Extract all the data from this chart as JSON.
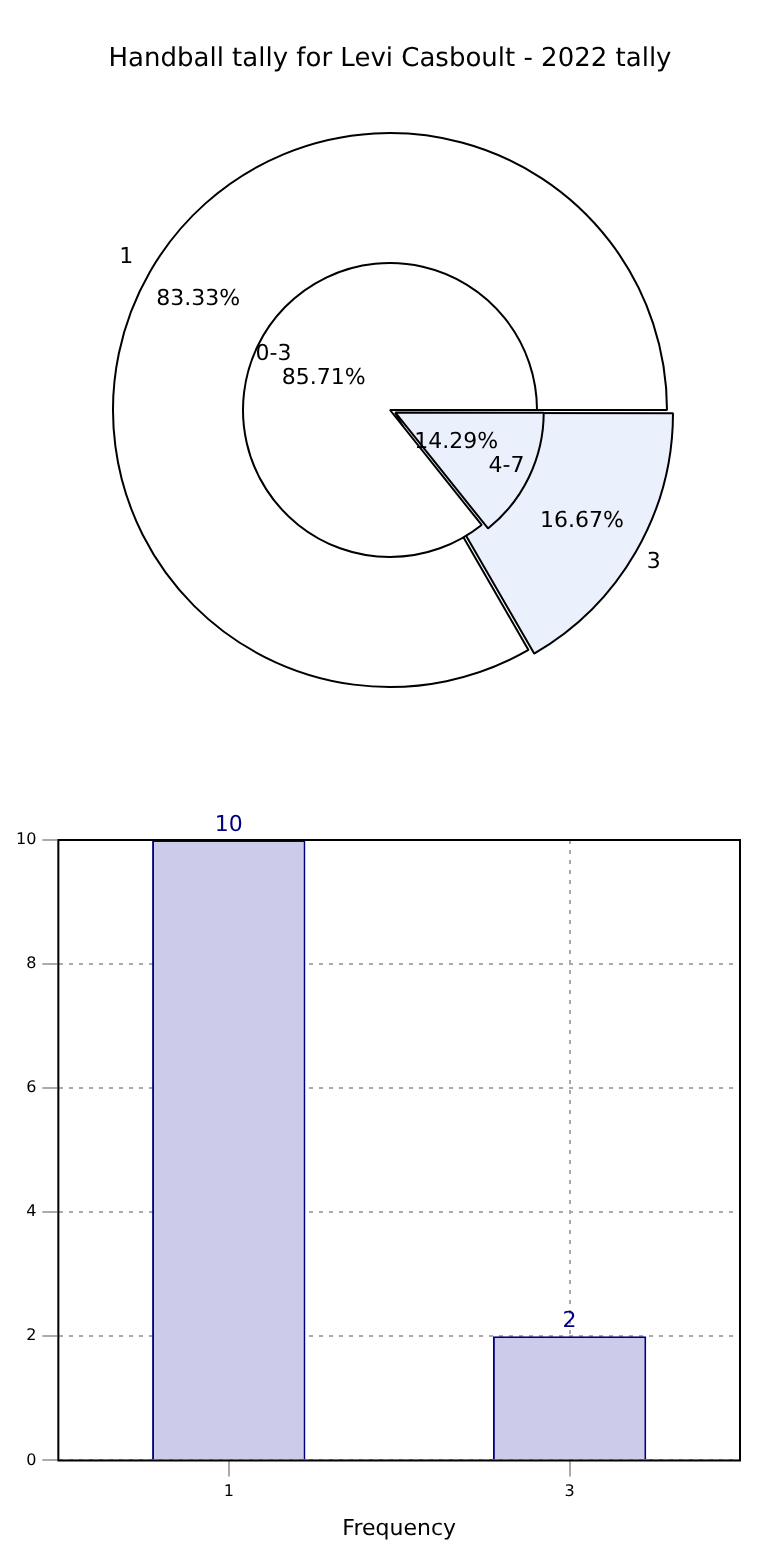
{
  "chart_data": [
    {
      "type": "pie",
      "title": "Handball tally for Levi Casboult - 2022 tally",
      "categories": [
        "1",
        "3"
      ],
      "values": [
        83.33,
        16.67
      ],
      "colors": [
        "#ffffff",
        "#eaf0fc"
      ],
      "value_labels": [
        "83.33%",
        "16.67%"
      ]
    },
    {
      "type": "pie",
      "categories": [
        "0-3",
        "4-7"
      ],
      "values": [
        85.71,
        14.29
      ],
      "colors": [
        "#ffffff",
        "#eaf0fc"
      ],
      "value_labels": [
        "85.71%",
        "14.29%"
      ]
    },
    {
      "type": "bar",
      "xlabel": "Frequency",
      "categories": [
        "1",
        "3"
      ],
      "values": [
        10,
        2
      ],
      "color": "#ccccea",
      "ylim": [
        0,
        10
      ],
      "yticks": [
        0,
        2,
        4,
        6,
        8,
        10
      ],
      "grid": true,
      "data_labels": true
    }
  ]
}
